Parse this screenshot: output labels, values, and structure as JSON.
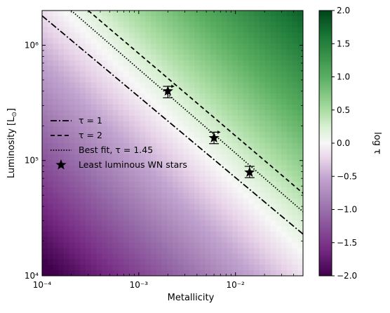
{
  "chart_data": {
    "type": "heatmap",
    "title": "",
    "xlabel": "Metallicity",
    "ylabel": "Luminosity [L_⊙]",
    "xscale": "log",
    "yscale": "log",
    "xlim": [
      0.0001,
      0.05
    ],
    "ylim": [
      10000,
      2000000
    ],
    "x_ticks": [
      {
        "value": 0.0001,
        "label": "10⁻⁴"
      },
      {
        "value": 0.001,
        "label": "10⁻³"
      },
      {
        "value": 0.01,
        "label": "10⁻²"
      }
    ],
    "y_ticks": [
      {
        "value": 10000,
        "label": "10⁴"
      },
      {
        "value": 100000,
        "label": "10⁵"
      },
      {
        "value": 1000000,
        "label": "10⁶"
      }
    ],
    "colorbar": {
      "label": "log τ",
      "range": [
        -2.0,
        2.0
      ],
      "ticks": [
        "−2.0",
        "−1.5",
        "−1.0",
        "−0.5",
        "0.0",
        "0.5",
        "1.0",
        "1.5",
        "2.0"
      ],
      "colormap": "PRGn",
      "colors": {
        "low": "#40004b",
        "mid": "#f7f7f7",
        "high": "#00441b"
      }
    },
    "field": {
      "description_formula": "log tau = 0.85 * log10(L * Z^0.85 / (1.45e5 * 0.006^0.85))",
      "slope_per_dex": 0.85,
      "pivot_Z": 0.006,
      "pivot_L": 145000
    },
    "series": [
      {
        "name": "τ = 1",
        "style": "dashdot",
        "points": [
          [
            0.0001,
            1800000
          ],
          [
            0.05,
            23000
          ]
        ]
      },
      {
        "name": "τ = 2",
        "style": "dashed",
        "points": [
          [
            0.0003,
            2000000
          ],
          [
            0.05,
            52000
          ]
        ]
      },
      {
        "name": "Best fit, τ = 1.45",
        "style": "dotted",
        "points": [
          [
            0.0002,
            2000000
          ],
          [
            0.05,
            36000
          ]
        ]
      },
      {
        "name": "Least luminous WN stars",
        "style": "star",
        "points": [
          {
            "x": 0.002,
            "y": 400000,
            "err_lo": 350000,
            "err_hi": 440000,
            "upper_limit_arrow": true
          },
          {
            "x": 0.006,
            "y": 157000,
            "err_lo": 140000,
            "err_hi": 176000,
            "upper_limit_arrow": true
          },
          {
            "x": 0.014,
            "y": 79000,
            "err_lo": 71000,
            "err_hi": 89000,
            "upper_limit_arrow": false
          }
        ]
      }
    ],
    "legend": {
      "placement": "center-left",
      "entries": [
        "τ = 1",
        "τ = 2",
        "Best fit, τ = 1.45",
        "Least luminous WN stars"
      ]
    },
    "grid": false
  }
}
